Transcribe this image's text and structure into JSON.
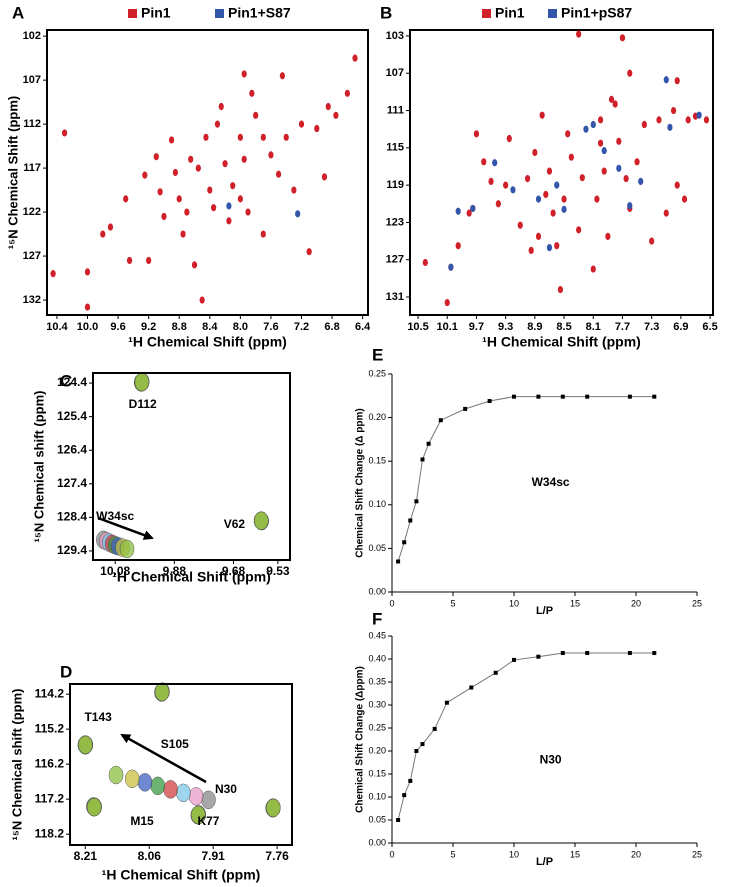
{
  "chart_data": [
    {
      "type": "scatter",
      "label": "A",
      "x_label": "¹H Chemical Shift (ppm)",
      "y_label": "¹⁵N Chemical Shift (ppm)",
      "xlim": [
        10.53,
        6.33
      ],
      "ylim": [
        133.7,
        101.3
      ],
      "xticks": [
        10.4,
        {
          "value": 10,
          "label": "10.0"
        },
        9.6,
        9.2,
        8.8,
        8.4,
        {
          "value": 8,
          "label": "8.0"
        },
        7.6,
        7.2,
        6.8,
        6.4
      ],
      "yticks": [
        102,
        107,
        112,
        117,
        122,
        127,
        132
      ],
      "series": [
        {
          "name": "Pin1",
          "color": "#d0202a",
          "x": [
            10.3,
            10.0,
            10.45,
            10.0,
            9.8,
            9.7,
            9.5,
            9.45,
            9.2,
            9.25,
            9.1,
            9.05,
            8.9,
            8.85,
            8.8,
            8.7,
            8.65,
            8.6,
            8.5,
            8.45,
            8.4,
            8.35,
            8.3,
            8.25,
            8.2,
            8.15,
            8.1,
            8.0,
            8.0,
            7.95,
            7.9,
            7.85,
            7.8,
            7.7,
            7.6,
            7.5,
            7.45,
            7.4,
            7.2,
            7.1,
            6.9,
            6.85,
            6.75,
            6.6,
            6.5,
            7.0,
            7.7,
            8.55,
            9.0,
            8.75,
            7.3,
            7.95
          ],
          "values": [
            113,
            132.8,
            129,
            128.8,
            124.5,
            123.7,
            120.5,
            127.5,
            127.5,
            117.8,
            115.7,
            119.7,
            113.8,
            117.5,
            120.5,
            122,
            116,
            128,
            132,
            113.5,
            119.5,
            121.5,
            112,
            110,
            116.5,
            123,
            119,
            120.5,
            113.5,
            116,
            122,
            108.5,
            111,
            124.5,
            115.5,
            117.7,
            106.5,
            113.5,
            112,
            126.5,
            118,
            110,
            111,
            108.5,
            104.5,
            112.5,
            113.5,
            117,
            122.5,
            124.5,
            119.5,
            106.3
          ]
        },
        {
          "name": "Pin1+S87",
          "color": "#3355aa",
          "x": [
            8.15,
            7.25
          ],
          "values": [
            121.3,
            122.2
          ]
        }
      ]
    },
    {
      "type": "scatter",
      "label": "B",
      "x_label": "¹H Chemical Shift (ppm)",
      "xlim": [
        10.61,
        6.46
      ],
      "ylim": [
        132.93,
        102.36
      ],
      "xticks": [
        10.5,
        10.1,
        9.7,
        9.3,
        8.9,
        8.5,
        8.1,
        7.7,
        7.3,
        6.9,
        6.5
      ],
      "yticks": [
        103,
        107,
        111,
        115,
        119,
        123,
        127,
        131
      ],
      "series": [
        {
          "name": "Pin1",
          "color": "#d0202a",
          "x": [
            10.1,
            10.05,
            10.4,
            9.95,
            9.8,
            9.75,
            9.7,
            9.5,
            9.4,
            9.3,
            9.25,
            9.1,
            9.0,
            8.95,
            8.9,
            8.85,
            8.8,
            8.75,
            8.7,
            8.65,
            8.6,
            8.55,
            8.5,
            8.45,
            8.4,
            8.3,
            8.3,
            8.25,
            8.1,
            8.05,
            8.0,
            7.95,
            7.9,
            7.85,
            7.8,
            7.75,
            7.7,
            7.65,
            7.6,
            7.5,
            7.4,
            7.3,
            7.2,
            7.1,
            7.0,
            6.95,
            6.85,
            6.8,
            6.7,
            6.55,
            6.95,
            7.6,
            8.0,
            9.6
          ],
          "values": [
            131.6,
            127.8,
            127.3,
            125.5,
            122,
            121.5,
            113.5,
            118.6,
            121,
            119,
            114,
            123.3,
            118.3,
            126,
            115.5,
            124.5,
            111.5,
            120,
            117.5,
            122,
            125.5,
            130.2,
            120.5,
            113.5,
            116,
            102.8,
            123.8,
            118.2,
            128,
            120.5,
            112,
            117.5,
            124.5,
            109.8,
            110.3,
            114.3,
            103.2,
            118.3,
            121.5,
            116.5,
            112.5,
            125,
            112,
            122,
            111,
            119,
            120.5,
            112,
            111.6,
            112,
            107.8,
            107,
            114.5,
            116.5
          ]
        },
        {
          "name": "Pin1+pS87",
          "color": "#3355aa",
          "x": [
            10.05,
            9.75,
            9.45,
            9.2,
            8.85,
            8.7,
            8.6,
            8.5,
            8.1,
            7.95,
            7.75,
            7.6,
            7.45,
            7.1,
            7.05,
            6.65,
            8.2,
            9.95
          ],
          "values": [
            127.8,
            121.5,
            116.6,
            119.5,
            120.5,
            125.7,
            119,
            121.6,
            112.5,
            115.3,
            117.2,
            121.2,
            118.6,
            107.7,
            112.8,
            111.5,
            113,
            121.8
          ]
        }
      ]
    },
    {
      "type": "scatter",
      "label": "C",
      "x_label": "¹H Chemical Shift (ppm)",
      "y_label": "¹⁵N Chemical shift (ppm)",
      "xlim": [
        10.155,
        9.489
      ],
      "ylim": [
        129.67,
        124.1
      ],
      "xticks": [
        10.08,
        9.88,
        9.68,
        9.53
      ],
      "yticks": [
        124.4,
        125.4,
        126.4,
        127.4,
        128.4,
        129.4
      ],
      "annotations": [
        {
          "text": "D112",
          "x": 9.987,
          "y": 125.05
        },
        {
          "text": "V62",
          "x": 9.677,
          "y": 128.62
        },
        {
          "text": "W34sc",
          "x": 10.08,
          "y": 128.38
        }
      ],
      "series": [
        {
          "color": "#8a8a8a",
          "x": [
            9.99,
            9.586,
            10.12
          ],
          "values": [
            124.37,
            128.5,
            129.07
          ]
        },
        {
          "color": "#e89cc8",
          "x": [
            9.991,
            9.587,
            10.11
          ],
          "values": [
            124.38,
            128.5,
            129.11
          ]
        },
        {
          "color": "#7fc8e8",
          "x": [
            9.989,
            9.585,
            10.1
          ],
          "values": [
            124.36,
            128.51,
            129.15
          ]
        },
        {
          "color": "#d04040",
          "x": [
            9.99,
            9.586,
            10.09
          ],
          "values": [
            124.37,
            128.5,
            129.19
          ]
        },
        {
          "color": "#3a9a40",
          "x": [
            9.992,
            9.586,
            10.08
          ],
          "values": [
            124.38,
            128.5,
            129.23
          ]
        },
        {
          "color": "#4060c0",
          "x": [
            9.99,
            9.585,
            10.07
          ],
          "values": [
            124.37,
            128.51,
            129.26
          ]
        },
        {
          "color": "#c8c040",
          "x": [
            9.989,
            9.586,
            10.055
          ],
          "values": [
            124.37,
            128.5,
            129.3
          ]
        },
        {
          "color": "#8cc040",
          "x": [
            9.99,
            9.586,
            10.04
          ],
          "values": [
            124.37,
            128.5,
            129.34
          ]
        }
      ]
    },
    {
      "type": "scatter",
      "label": "D",
      "x_label": "¹H Chemical Shift (ppm)",
      "y_label": "¹⁵N Chemical shift (ppm)",
      "xlim": [
        8.246,
        7.725
      ],
      "ylim": [
        118.51,
        113.91
      ],
      "xticks": [
        8.21,
        8.06,
        7.91,
        7.76
      ],
      "yticks": [
        114.2,
        115.2,
        116.2,
        117.2,
        118.2
      ],
      "annotations": [
        {
          "text": "T143",
          "x": 8.18,
          "y": 114.88
        },
        {
          "text": "S105",
          "x": 8.0,
          "y": 115.65
        },
        {
          "text": "N30",
          "x": 7.88,
          "y": 116.94
        },
        {
          "text": "M15",
          "x": 8.077,
          "y": 117.85
        },
        {
          "text": "K77",
          "x": 7.921,
          "y": 117.85
        }
      ],
      "series": [
        {
          "color": "#8a8a8a",
          "x": [
            8.21,
            8.03,
            7.921,
            7.945,
            8.19,
            7.769
          ],
          "values": [
            115.65,
            114.14,
            117.22,
            117.65,
            117.42,
            117.45
          ]
        },
        {
          "color": "#e89cc8",
          "x": [
            8.21,
            8.031,
            7.95,
            7.944,
            8.188,
            7.77
          ],
          "values": [
            115.66,
            114.15,
            117.12,
            117.64,
            117.42,
            117.45
          ]
        },
        {
          "color": "#7fc8e8",
          "x": [
            8.209,
            8.03,
            7.98,
            7.945,
            8.19,
            7.769
          ],
          "values": [
            115.65,
            114.14,
            117.02,
            117.65,
            117.43,
            117.44
          ]
        },
        {
          "color": "#d04040",
          "x": [
            8.21,
            8.029,
            8.01,
            7.946,
            8.19,
            7.77
          ],
          "values": [
            115.64,
            114.13,
            116.92,
            117.66,
            117.42,
            117.45
          ]
        },
        {
          "color": "#3a9a40",
          "x": [
            8.211,
            8.03,
            8.04,
            7.945,
            8.191,
            7.769
          ],
          "values": [
            115.65,
            114.14,
            116.82,
            117.65,
            117.41,
            117.45
          ]
        },
        {
          "color": "#4060c0",
          "x": [
            8.21,
            8.031,
            8.07,
            7.944,
            8.19,
            7.77
          ],
          "values": [
            115.66,
            114.15,
            116.72,
            117.64,
            117.42,
            117.46
          ]
        },
        {
          "color": "#c8c040",
          "x": [
            8.209,
            8.03,
            8.1,
            7.945,
            8.19,
            7.769
          ],
          "values": [
            115.65,
            114.14,
            116.62,
            117.65,
            117.42,
            117.45
          ]
        },
        {
          "color": "#8cc040",
          "x": [
            8.21,
            8.03,
            8.138,
            7.945,
            8.189,
            7.769
          ],
          "values": [
            115.65,
            114.14,
            116.51,
            117.65,
            117.43,
            117.45
          ]
        }
      ]
    },
    {
      "type": "line",
      "label": "E",
      "x_label": "L/P",
      "y_label": "Chemical Shift Change (Δ ppm)",
      "xlim": [
        0,
        25
      ],
      "ylim": [
        0,
        0.25
      ],
      "xticks": [
        0,
        5,
        10,
        15,
        20,
        25
      ],
      "yticks": [
        {
          "value": 0,
          "label": "0.00"
        },
        0.05,
        {
          "value": 0.1,
          "label": "0.10"
        },
        0.15,
        {
          "value": 0.2,
          "label": "0.20"
        },
        0.25
      ],
      "annotations": [
        {
          "text": "W34sc",
          "x": 13,
          "y": 0.125
        }
      ],
      "color": "#000000",
      "x": [
        0.5,
        1,
        1.5,
        2,
        2.5,
        3,
        4,
        6,
        8,
        10,
        12,
        14,
        16,
        19.5,
        21.5
      ],
      "values": [
        0.035,
        0.057,
        0.082,
        0.104,
        0.152,
        0.17,
        0.197,
        0.21,
        0.219,
        0.224,
        0.224,
        0.224,
        0.224,
        0.224,
        0.224
      ]
    },
    {
      "type": "line",
      "label": "F",
      "x_label": "L/P",
      "y_label": "Chemical Shift Change (Δppm)",
      "xlim": [
        0,
        25
      ],
      "ylim": [
        0,
        0.45
      ],
      "xticks": [
        0,
        5,
        10,
        15,
        20,
        25
      ],
      "yticks": [
        {
          "value": 0,
          "label": "0.00"
        },
        0.05,
        {
          "value": 0.1,
          "label": "0.10"
        },
        0.15,
        {
          "value": 0.2,
          "label": "0.20"
        },
        0.25,
        {
          "value": 0.3,
          "label": "0.30"
        },
        0.35,
        {
          "value": 0.4,
          "label": "0.40"
        },
        0.45
      ],
      "annotations": [
        {
          "text": "N30",
          "x": 13,
          "y": 0.18
        }
      ],
      "color": "#000000",
      "x": [
        0.5,
        1,
        1.5,
        2,
        2.5,
        3.5,
        4.5,
        6.5,
        8.5,
        10,
        12,
        14,
        16,
        19.5,
        21.5
      ],
      "values": [
        0.05,
        0.104,
        0.135,
        0.2,
        0.215,
        0.248,
        0.305,
        0.338,
        0.37,
        0.398,
        0.405,
        0.413,
        0.413,
        0.413,
        0.413
      ]
    }
  ]
}
